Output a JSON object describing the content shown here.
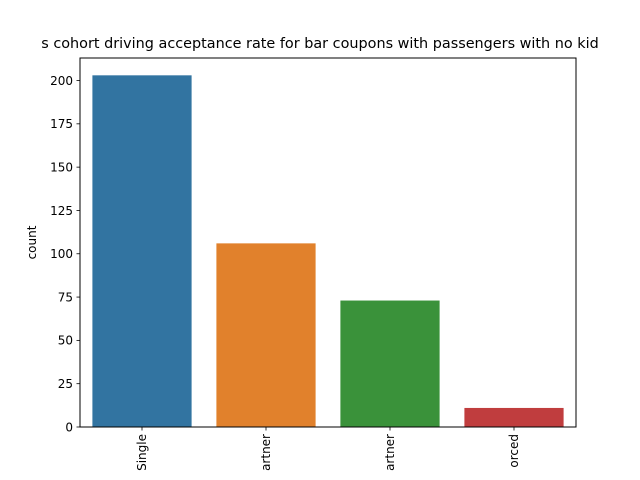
{
  "chart_data": {
    "type": "bar",
    "title": "s cohort driving acceptance rate for bar coupons with passengers with no kid",
    "xlabel": "",
    "ylabel": "count",
    "categories": [
      "Single",
      "artner",
      "artner",
      "orced"
    ],
    "values": [
      203,
      106,
      73,
      11
    ],
    "ylim": [
      0,
      213
    ],
    "yticks": [
      0,
      25,
      50,
      75,
      100,
      125,
      150,
      175,
      200
    ],
    "colors": [
      "#3274a1",
      "#e1812c",
      "#3a923a",
      "#c03d3e"
    ],
    "grid": false,
    "legend": "none"
  }
}
